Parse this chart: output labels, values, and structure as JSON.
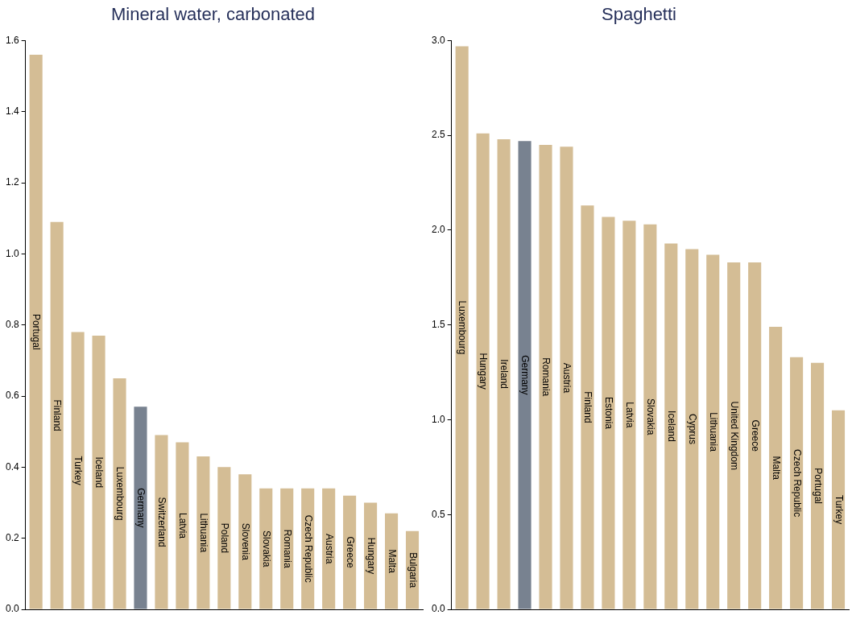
{
  "chart_data": [
    {
      "type": "bar",
      "title": "Mineral water, carbonated",
      "categories": [
        "Portugal",
        "Finland",
        "Turkey",
        "Iceland",
        "Luxembourg",
        "Germany",
        "Switzerland",
        "Latvia",
        "Lithuania",
        "Poland",
        "Slovenia",
        "Slovakia",
        "Romania",
        "Czech Republic",
        "Austria",
        "Greece",
        "Hungary",
        "Malta",
        "Bulgaria"
      ],
      "values": [
        1.56,
        1.09,
        0.78,
        0.77,
        0.65,
        0.57,
        0.49,
        0.47,
        0.43,
        0.4,
        0.38,
        0.34,
        0.34,
        0.34,
        0.34,
        0.32,
        0.3,
        0.27,
        0.22
      ],
      "colors": [
        "#d4bd95",
        "#d4bd95",
        "#d4bd95",
        "#d4bd95",
        "#d4bd95",
        "#788290",
        "#d4bd95",
        "#d4bd95",
        "#d4bd95",
        "#d4bd95",
        "#d4bd95",
        "#d4bd95",
        "#d4bd95",
        "#d4bd95",
        "#d4bd95",
        "#d4bd95",
        "#d4bd95",
        "#d4bd95",
        "#d4bd95"
      ],
      "ylim": [
        0,
        1.6
      ],
      "yticks": [
        {
          "value": 0,
          "label": "0.0"
        },
        {
          "value": 0.2,
          "label": "0.2"
        },
        {
          "value": 0.4,
          "label": "0.4"
        },
        {
          "value": 0.6,
          "label": "0.6"
        },
        {
          "value": 0.8,
          "label": "0.8"
        },
        {
          "value": 1,
          "label": "1.0"
        },
        {
          "value": 1.2,
          "label": "1.2"
        },
        {
          "value": 1.4,
          "label": "1.4"
        },
        {
          "value": 1.6,
          "label": "1.6"
        }
      ]
    },
    {
      "type": "bar",
      "title": "Spaghetti",
      "categories": [
        "Luxembourg",
        "Hungary",
        "Ireland",
        "Germany",
        "Romania",
        "Austria",
        "Finland",
        "Estonia",
        "Latvia",
        "Slovakia",
        "Iceland",
        "Cyprus",
        "Lithuania",
        "United Kingdom",
        "Greece",
        "Malta",
        "Czech Republic",
        "Portugal",
        "Turkey"
      ],
      "values": [
        2.97,
        2.51,
        2.48,
        2.47,
        2.45,
        2.44,
        2.13,
        2.07,
        2.05,
        2.03,
        1.93,
        1.9,
        1.87,
        1.83,
        1.83,
        1.49,
        1.33,
        1.3,
        1.05
      ],
      "colors": [
        "#d4bd95",
        "#d4bd95",
        "#d4bd95",
        "#788290",
        "#d4bd95",
        "#d4bd95",
        "#d4bd95",
        "#d4bd95",
        "#d4bd95",
        "#d4bd95",
        "#d4bd95",
        "#d4bd95",
        "#d4bd95",
        "#d4bd95",
        "#d4bd95",
        "#d4bd95",
        "#d4bd95",
        "#d4bd95",
        "#d4bd95"
      ],
      "ylim": [
        0,
        3.0
      ],
      "yticks": [
        {
          "value": 0,
          "label": "0.0"
        },
        {
          "value": 0.5,
          "label": "0.5"
        },
        {
          "value": 1,
          "label": "1.0"
        },
        {
          "value": 1.5,
          "label": "1.5"
        },
        {
          "value": 2,
          "label": "2.0"
        },
        {
          "value": 2.5,
          "label": "2.5"
        },
        {
          "value": 3,
          "label": "3.0"
        }
      ]
    }
  ]
}
